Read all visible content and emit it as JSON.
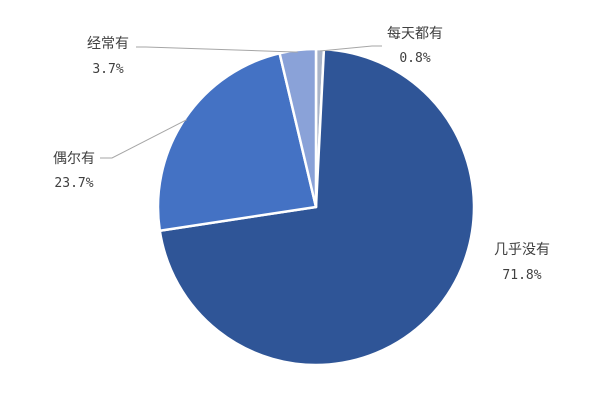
{
  "chart_data": {
    "type": "pie",
    "title": "",
    "slices": [
      {
        "label": "每天都有",
        "value": 0.8,
        "value_label": "0.8%",
        "color": "#a9b4c8"
      },
      {
        "label": "几乎没有",
        "value": 71.8,
        "value_label": "71.8%",
        "color": "#2f5597"
      },
      {
        "label": "偶尔有",
        "value": 23.7,
        "value_label": "23.7%",
        "color": "#4472c4"
      },
      {
        "label": "经常有",
        "value": 3.7,
        "value_label": "3.7%",
        "color": "#8aa2d8"
      }
    ],
    "start_angle": "top (12 o'clock), clockwise",
    "legend": "none",
    "data_labels": "outside with leader lines"
  }
}
